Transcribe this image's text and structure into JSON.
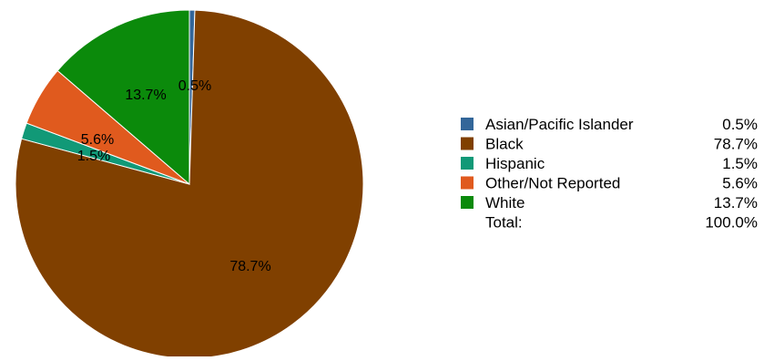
{
  "chart_data": {
    "type": "pie",
    "title": "",
    "slices": [
      {
        "label": "Asian/Pacific Islander",
        "value": 0.5,
        "display": "0.5%",
        "color": "#336699"
      },
      {
        "label": "Black",
        "value": 78.7,
        "display": "78.7%",
        "color": "#804000"
      },
      {
        "label": "Hispanic",
        "value": 1.5,
        "display": "1.5%",
        "color": "#119977"
      },
      {
        "label": "Other/Not Reported",
        "value": 5.6,
        "display": "5.6%",
        "color": "#e05a1e"
      },
      {
        "label": "White",
        "value": 13.7,
        "display": "13.7%",
        "color": "#0b8a0b"
      }
    ],
    "legend": {
      "placement": "right",
      "total_label": "Total:",
      "total_value": "100.0%"
    }
  }
}
